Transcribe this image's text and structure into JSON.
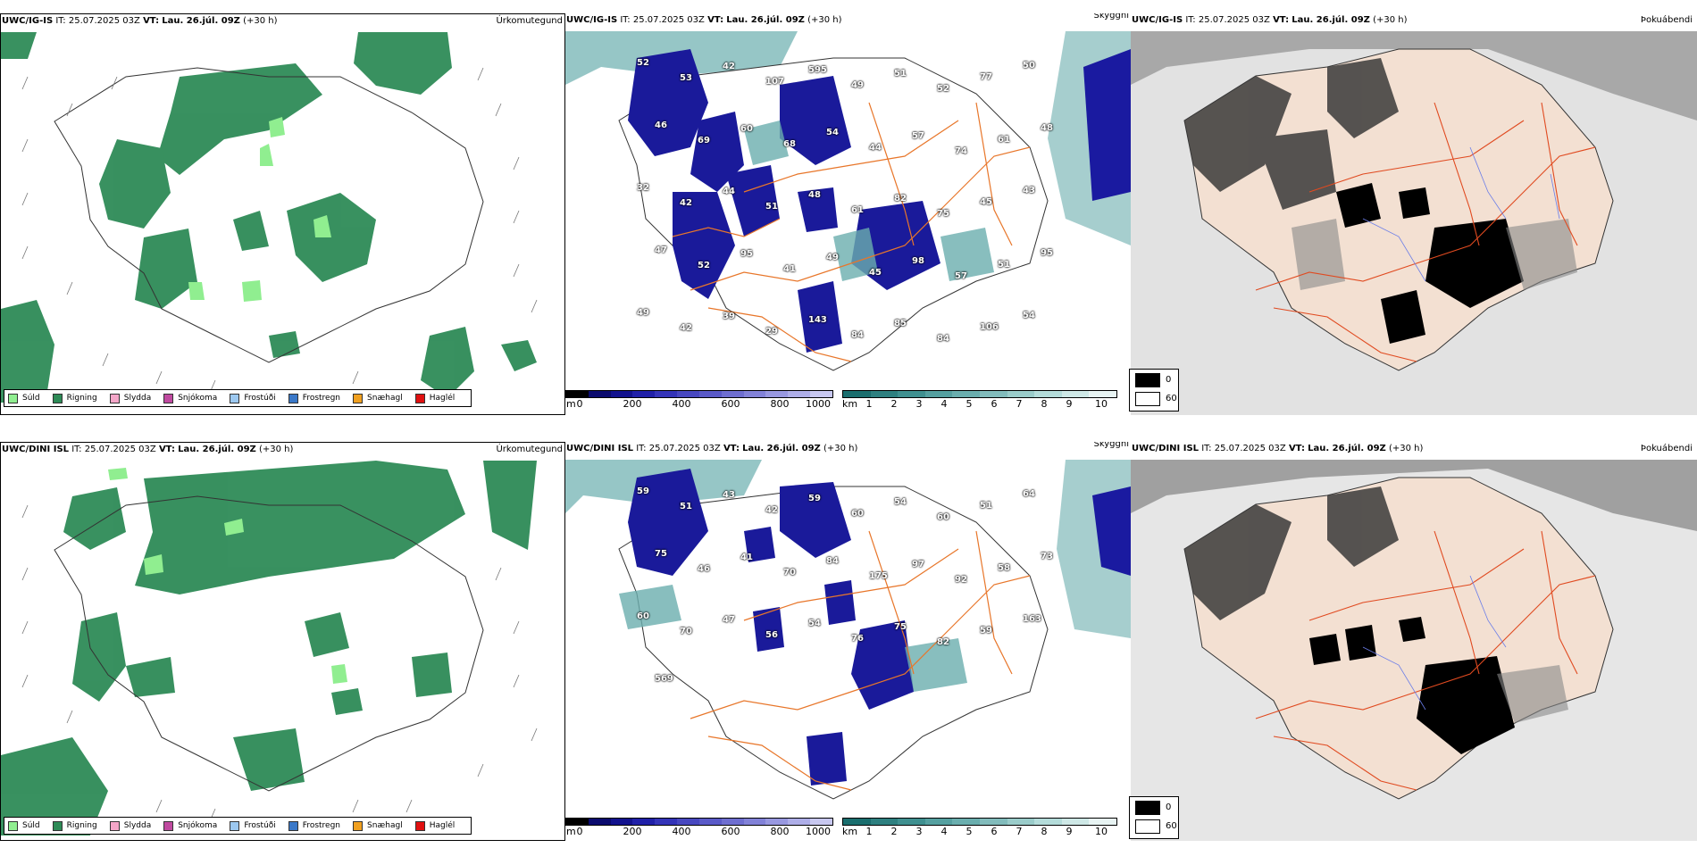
{
  "rows": [
    {
      "model": "UWC/IG-IS",
      "it_label": "IT:",
      "it_value": "25.07.2025 03Z",
      "vt_label": "VT:",
      "vt_value": "Lau. 26.júl. 09Z",
      "lead": "(+30 h)",
      "titles": {
        "precip": "Úrkomutegund",
        "cloud": "Skyggni",
        "fog": "Þokuábendi"
      },
      "cloud_labels": [
        "52",
        "53",
        "42",
        "107",
        "595",
        "49",
        "51",
        "52",
        "77",
        "50",
        "46",
        "69",
        "60",
        "68",
        "54",
        "44",
        "57",
        "74",
        "61",
        "48",
        "32",
        "42",
        "44",
        "51",
        "48",
        "61",
        "82",
        "75",
        "45",
        "43",
        "47",
        "52",
        "95",
        "41",
        "49",
        "45",
        "98",
        "57",
        "51",
        "95",
        "49",
        "42",
        "39",
        "29",
        "143",
        "84",
        "85",
        "84",
        "106",
        "54"
      ]
    },
    {
      "model": "UWC/DINI ISL",
      "it_label": "IT:",
      "it_value": "25.07.2025 03Z",
      "vt_label": "VT:",
      "vt_value": "Lau. 26.júl. 09Z",
      "lead": "(+30 h)",
      "titles": {
        "precip": "Úrkomutegund",
        "cloud": "Skyggni",
        "fog": "Þokuábendi"
      },
      "cloud_labels": [
        "59",
        "51",
        "43",
        "42",
        "59",
        "60",
        "54",
        "60",
        "51",
        "64",
        "75",
        "46",
        "41",
        "70",
        "84",
        "175",
        "97",
        "92",
        "58",
        "73",
        "60",
        "70",
        "47",
        "56",
        "54",
        "76",
        "75",
        "82",
        "59",
        "163",
        "569"
      ]
    }
  ],
  "precip_legend": [
    {
      "label": "Súld",
      "color": "#90ee90"
    },
    {
      "label": "Rigning",
      "color": "#2e8b57"
    },
    {
      "label": "Slydda",
      "color": "#f4a6c8"
    },
    {
      "label": "Snjókoma",
      "color": "#c04aa0"
    },
    {
      "label": "Frostúði",
      "color": "#9cc8f0"
    },
    {
      "label": "Frostregn",
      "color": "#3a78c8"
    },
    {
      "label": "Snæhagl",
      "color": "#f0a020"
    },
    {
      "label": "Haglél",
      "color": "#e01010"
    }
  ],
  "cloud_colorbar": {
    "unit": "m",
    "ticks": [
      "0",
      "200",
      "400",
      "600",
      "800",
      "1000"
    ],
    "colors": [
      "#000000",
      "#0b0b6e",
      "#12128e",
      "#2020a8",
      "#3434b8",
      "#4848c0",
      "#5a5ac8",
      "#6e6ed0",
      "#8282d8",
      "#9898e0",
      "#aeaee8",
      "#c8c8f0"
    ]
  },
  "vis_colorbar": {
    "unit": "km",
    "ticks": [
      "1",
      "2",
      "3",
      "4",
      "5",
      "6",
      "7",
      "8",
      "9",
      "10"
    ],
    "colors": [
      "#1a6e6e",
      "#2e8080",
      "#3f9090",
      "#55a0a0",
      "#6aaeae",
      "#82bcbc",
      "#9accca",
      "#b4dcda",
      "#cee8e6",
      "#e8f4f3"
    ]
  },
  "fog_legend": [
    {
      "label": "0",
      "color": "#000000"
    },
    {
      "label": "60",
      "color": "#ffffff"
    }
  ]
}
